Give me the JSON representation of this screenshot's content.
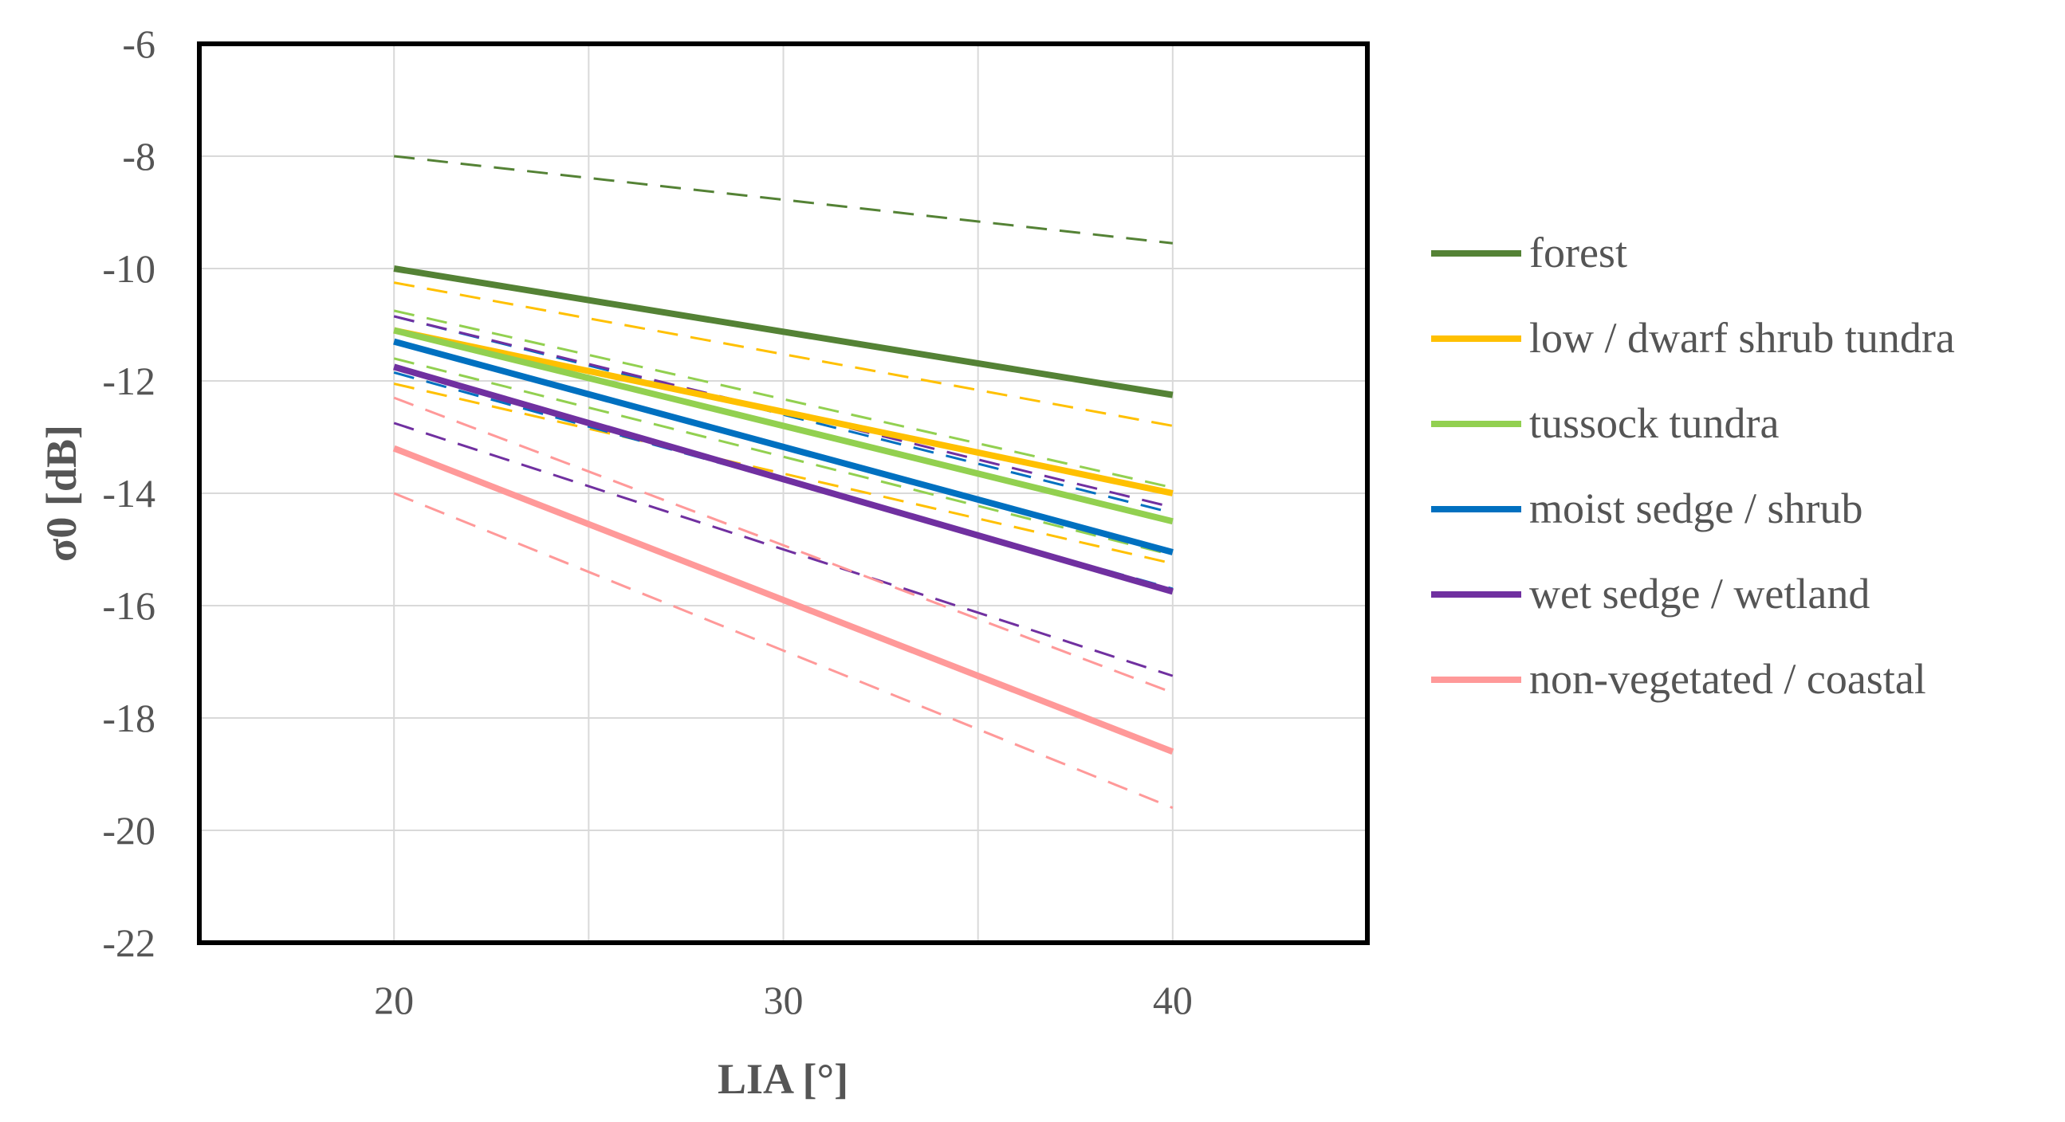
{
  "chart_data": {
    "type": "line",
    "title": "",
    "xlabel": "LIA [°]",
    "ylabel": "σ0 [dB]",
    "xlim": [
      15,
      45
    ],
    "ylim": [
      -22,
      -6
    ],
    "xticks": [
      20,
      30,
      40
    ],
    "yticks": [
      -22,
      -20,
      -18,
      -16,
      -14,
      -12,
      -10,
      -8,
      -6
    ],
    "grid": true,
    "legend_position": "right",
    "series": [
      {
        "name": "forest",
        "color": "#548235",
        "x": [
          20,
          40
        ],
        "values": [
          -10.0,
          -12.25
        ],
        "style": "solid"
      },
      {
        "name": "low / dwarf shrub tundra",
        "color": "#FFC000",
        "x": [
          20,
          40
        ],
        "values": [
          -11.1,
          -14.0
        ],
        "style": "solid"
      },
      {
        "name": "tussock tundra",
        "color": "#92D050",
        "x": [
          20,
          40
        ],
        "values": [
          -11.1,
          -14.5
        ],
        "style": "solid"
      },
      {
        "name": "moist sedge / shrub",
        "color": "#0070C0",
        "x": [
          20,
          40
        ],
        "values": [
          -11.3,
          -15.05
        ],
        "style": "solid"
      },
      {
        "name": "wet sedge / wetland",
        "color": "#7030A0",
        "x": [
          20,
          40
        ],
        "values": [
          -11.75,
          -15.75
        ],
        "style": "solid"
      },
      {
        "name": "non-vegetated / coastal",
        "color": "#FF9999",
        "x": [
          20,
          40
        ],
        "values": [
          -13.2,
          -18.6
        ],
        "style": "solid"
      }
    ],
    "bounds": [
      {
        "series": "forest",
        "color": "#548235",
        "x": [
          20,
          40
        ],
        "values": [
          -8.0,
          -9.55
        ]
      },
      {
        "series": "low / dwarf shrub tundra",
        "color": "#FFC000",
        "x": [
          20,
          40
        ],
        "values": [
          -10.25,
          -12.8
        ]
      },
      {
        "series": "low / dwarf shrub tundra",
        "color": "#FFC000",
        "x": [
          20,
          40
        ],
        "values": [
          -12.05,
          -15.25
        ]
      },
      {
        "series": "tussock tundra",
        "color": "#92D050",
        "x": [
          20,
          40
        ],
        "values": [
          -10.75,
          -13.9
        ]
      },
      {
        "series": "tussock tundra",
        "color": "#92D050",
        "x": [
          20,
          40
        ],
        "values": [
          -11.6,
          -15.1
        ]
      },
      {
        "series": "moist sedge / shrub",
        "color": "#0070C0",
        "x": [
          20,
          40
        ],
        "values": [
          -10.85,
          -14.35
        ]
      },
      {
        "series": "moist sedge / shrub",
        "color": "#0070C0",
        "x": [
          20,
          40
        ],
        "values": [
          -11.85,
          -15.7
        ]
      },
      {
        "series": "wet sedge / wetland",
        "color": "#7030A0",
        "x": [
          20,
          40
        ],
        "values": [
          -10.85,
          -14.25
        ]
      },
      {
        "series": "wet sedge / wetland",
        "color": "#7030A0",
        "x": [
          20,
          40
        ],
        "values": [
          -12.75,
          -17.25
        ]
      },
      {
        "series": "non-vegetated / coastal",
        "color": "#FF9999",
        "x": [
          20,
          40
        ],
        "values": [
          -12.3,
          -17.55
        ]
      },
      {
        "series": "non-vegetated / coastal",
        "color": "#FF9999",
        "x": [
          20,
          40
        ],
        "values": [
          -14.0,
          -19.6
        ]
      }
    ]
  }
}
